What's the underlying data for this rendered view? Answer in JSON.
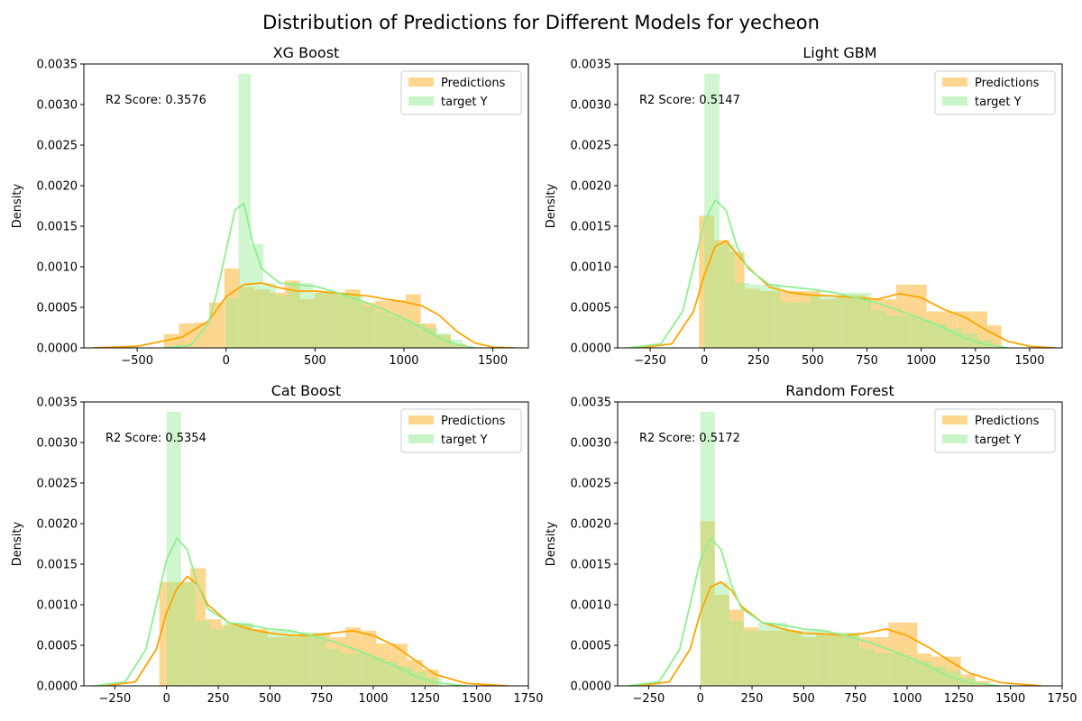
{
  "figure": {
    "title": "Distribution of Predictions for Different Models for yecheon"
  },
  "colors": {
    "predictions_fill": "#fdd78f",
    "predictions_kde": "#ffa500",
    "target_fill": "#c8f5c8",
    "target_kde": "#90ee90",
    "overlap_fill": "#d1e08f"
  },
  "chart_data": [
    {
      "type": "histogram",
      "title": "XG Boost",
      "ylabel": "Density",
      "annotation": "R2 Score: 0.3576",
      "xlim": [
        -800,
        1700
      ],
      "ylim": [
        0,
        0.0035
      ],
      "xticks": [
        -500,
        0,
        500,
        1000,
        1500
      ],
      "yticks": [
        0,
        0.0005,
        0.001,
        0.0015,
        0.002,
        0.0025,
        0.003,
        0.0035
      ],
      "legend": {
        "placement": "upper-right",
        "entries": [
          "Predictions",
          "target Y"
        ]
      },
      "series": [
        {
          "name": "Predictions",
          "bin_edges": [
            -350,
            -265,
            -180,
            -95,
            -10,
            75,
            160,
            245,
            330,
            415,
            500,
            585,
            670,
            755,
            840,
            925,
            1010,
            1095,
            1180,
            1265,
            1350
          ],
          "density": [
            0.00017,
            0.0003,
            0.00031,
            0.00056,
            0.00098,
            0.00075,
            0.00072,
            0.00068,
            0.00083,
            0.0006,
            0.00068,
            0.00068,
            0.00072,
            0.00056,
            0.00058,
            0.00058,
            0.00066,
            0.0003,
            0.00016,
            5e-05
          ],
          "kde": {
            "x": [
              -750,
              -500,
              -250,
              -100,
              0,
              100,
              200,
              300,
              400,
              500,
              600,
              700,
              800,
              900,
              1000,
              1100,
              1200,
              1300,
              1400,
              1500,
              1620
            ],
            "y": [
              0,
              2e-05,
              0.00013,
              0.00033,
              0.00063,
              0.00078,
              0.0008,
              0.00074,
              0.0007,
              0.0007,
              0.00068,
              0.00066,
              0.00064,
              0.0006,
              0.00057,
              0.00052,
              0.0004,
              0.0002,
              6e-05,
              1e-05,
              0
            ]
          }
        },
        {
          "name": "target Y",
          "bin_edges": [
            0,
            70,
            140,
            210,
            280,
            350,
            420,
            490,
            560,
            630,
            700,
            770,
            840,
            910,
            980,
            1050,
            1120,
            1190,
            1260,
            1330
          ],
          "density": [
            0.00062,
            0.00338,
            0.00128,
            0.0008,
            0.00065,
            0.0008,
            0.0008,
            0.00068,
            0.00068,
            0.00068,
            0.00065,
            0.00052,
            0.00045,
            0.0004,
            0.00035,
            0.0003,
            0.00025,
            0.00018,
            0.0001
          ],
          "kde": {
            "x": [
              -350,
              -200,
              -100,
              -50,
              0,
              50,
              100,
              150,
              200,
              300,
              400,
              500,
              600,
              700,
              800,
              900,
              1000,
              1100,
              1200,
              1300,
              1400
            ],
            "y": [
              0,
              3e-05,
              0.0003,
              0.0007,
              0.0012,
              0.0017,
              0.00178,
              0.0013,
              0.00098,
              0.0008,
              0.00078,
              0.00076,
              0.0007,
              0.00062,
              0.00055,
              0.00046,
              0.00036,
              0.00025,
              0.00012,
              4e-05,
              0
            ]
          }
        }
      ]
    },
    {
      "type": "histogram",
      "title": "Light GBM",
      "ylabel": "Density",
      "annotation": "R2 Score: 0.5147",
      "xlim": [
        -400,
        1650
      ],
      "ylim": [
        0,
        0.0035
      ],
      "xticks": [
        -250,
        0,
        250,
        500,
        750,
        1000,
        1250,
        1500
      ],
      "yticks": [
        0,
        0.0005,
        0.001,
        0.0015,
        0.002,
        0.0025,
        0.003,
        0.0035
      ],
      "legend": {
        "placement": "upper-right",
        "entries": [
          "Predictions",
          "target Y"
        ]
      },
      "series": [
        {
          "name": "Predictions",
          "bin_edges": [
            -25,
            45,
            115,
            185,
            255,
            325,
            395,
            465,
            535,
            605,
            675,
            745,
            815,
            885,
            955,
            1025,
            1095,
            1165,
            1235,
            1305,
            1370
          ],
          "density": [
            0.00163,
            0.00133,
            0.00118,
            0.00073,
            0.0007,
            0.0007,
            0.0007,
            0.0007,
            0.0006,
            0.00065,
            0.00065,
            0.0006,
            0.0006,
            0.00078,
            0.00078,
            0.00045,
            0.00045,
            0.00045,
            0.00045,
            0.00028
          ],
          "kde": {
            "x": [
              -300,
              -150,
              -50,
              0,
              50,
              100,
              200,
              300,
              400,
              500,
              600,
              700,
              800,
              900,
              1000,
              1100,
              1200,
              1300,
              1400,
              1500,
              1620
            ],
            "y": [
              0,
              5e-05,
              0.00045,
              0.0009,
              0.00125,
              0.00132,
              0.001,
              0.00075,
              0.00068,
              0.00065,
              0.00064,
              0.00062,
              0.0006,
              0.00067,
              0.00062,
              0.00048,
              0.00038,
              0.00022,
              8e-05,
              2e-05,
              0
            ]
          }
        },
        {
          "name": "target Y",
          "bin_edges": [
            0,
            70,
            140,
            210,
            280,
            350,
            420,
            490,
            560,
            630,
            700,
            770,
            840,
            910,
            980,
            1050,
            1120,
            1190,
            1260,
            1330
          ],
          "density": [
            0.00338,
            0.00128,
            0.0008,
            0.00078,
            0.00078,
            0.00056,
            0.00056,
            0.00065,
            0.00065,
            0.00068,
            0.00068,
            0.00046,
            0.0004,
            0.0004,
            0.00035,
            0.0003,
            0.00024,
            0.00018,
            0.0001
          ],
          "kde": {
            "x": [
              -350,
              -200,
              -100,
              -50,
              0,
              50,
              100,
              150,
              200,
              300,
              400,
              500,
              600,
              700,
              800,
              900,
              1000,
              1100,
              1200,
              1300,
              1400
            ],
            "y": [
              0,
              5e-05,
              0.00045,
              0.001,
              0.00155,
              0.00182,
              0.0017,
              0.00125,
              0.00098,
              0.00078,
              0.00075,
              0.00072,
              0.00068,
              0.00062,
              0.00055,
              0.00046,
              0.00036,
              0.00025,
              0.00012,
              4e-05,
              0
            ]
          }
        }
      ]
    },
    {
      "type": "histogram",
      "title": "Cat Boost",
      "ylabel": "Density",
      "annotation": "R2 Score: 0.5354",
      "xlim": [
        -400,
        1750
      ],
      "ylim": [
        0,
        0.0035
      ],
      "xticks": [
        -250,
        0,
        250,
        500,
        750,
        1000,
        1250,
        1500,
        1750
      ],
      "yticks": [
        0,
        0.0005,
        0.001,
        0.0015,
        0.002,
        0.0025,
        0.003,
        0.0035
      ],
      "legend": {
        "placement": "upper-right",
        "entries": [
          "Predictions",
          "target Y"
        ]
      },
      "series": [
        {
          "name": "Predictions",
          "bin_edges": [
            -35,
            40,
            115,
            190,
            265,
            340,
            415,
            490,
            565,
            640,
            715,
            790,
            865,
            940,
            1015,
            1090,
            1165,
            1240,
            1315
          ],
          "density": [
            0.00128,
            0.00128,
            0.00145,
            0.00082,
            0.00075,
            0.00075,
            0.0007,
            0.0006,
            0.0006,
            0.00065,
            0.00065,
            0.0006,
            0.00072,
            0.00068,
            0.00052,
            0.00052,
            0.00032,
            0.0002
          ],
          "kde": {
            "x": [
              -300,
              -150,
              -50,
              0,
              50,
              100,
              150,
              200,
              300,
              400,
              500,
              600,
              700,
              800,
              900,
              1000,
              1100,
              1200,
              1300,
              1450,
              1650
            ],
            "y": [
              0,
              5e-05,
              0.00045,
              0.0009,
              0.0012,
              0.00135,
              0.00125,
              0.001,
              0.00078,
              0.0007,
              0.00065,
              0.00062,
              0.00062,
              0.00065,
              0.00068,
              0.00062,
              0.0005,
              0.00032,
              0.00014,
              3e-05,
              0
            ]
          }
        },
        {
          "name": "target Y",
          "bin_edges": [
            0,
            70,
            140,
            210,
            280,
            350,
            420,
            490,
            560,
            630,
            700,
            770,
            840,
            910,
            980,
            1050,
            1120,
            1190,
            1260,
            1330
          ],
          "density": [
            0.00338,
            0.00128,
            0.0008,
            0.0007,
            0.00078,
            0.00078,
            0.00068,
            0.00068,
            0.00068,
            0.00066,
            0.00066,
            0.00046,
            0.0004,
            0.0004,
            0.00035,
            0.0003,
            0.00024,
            0.00018,
            0.0001
          ],
          "kde": {
            "x": [
              -350,
              -200,
              -100,
              -50,
              0,
              50,
              100,
              150,
              200,
              300,
              400,
              500,
              600,
              700,
              800,
              900,
              1000,
              1100,
              1200,
              1300,
              1450
            ],
            "y": [
              0,
              5e-05,
              0.00045,
              0.001,
              0.00155,
              0.00182,
              0.00168,
              0.00125,
              0.00095,
              0.00078,
              0.00075,
              0.0007,
              0.00068,
              0.00062,
              0.00055,
              0.00046,
              0.00036,
              0.00025,
              0.00012,
              4e-05,
              0
            ]
          }
        }
      ]
    },
    {
      "type": "histogram",
      "title": "Random Forest",
      "ylabel": "Density",
      "annotation": "R2 Score: 0.5172",
      "xlim": [
        -400,
        1750
      ],
      "ylim": [
        0,
        0.0035
      ],
      "xticks": [
        -250,
        0,
        250,
        500,
        750,
        1000,
        1250,
        1500,
        1750
      ],
      "yticks": [
        0,
        0.0005,
        0.001,
        0.0015,
        0.002,
        0.0025,
        0.003,
        0.0035
      ],
      "legend": {
        "placement": "upper-right",
        "entries": [
          "Predictions",
          "target Y"
        ]
      },
      "series": [
        {
          "name": "Predictions",
          "bin_edges": [
            0,
            70,
            140,
            210,
            280,
            350,
            420,
            490,
            560,
            630,
            700,
            770,
            840,
            910,
            980,
            1050,
            1120,
            1190,
            1260,
            1330,
            1400
          ],
          "density": [
            0.00203,
            0.00112,
            0.00094,
            0.00072,
            0.00068,
            0.00068,
            0.00068,
            0.0006,
            0.00065,
            0.00065,
            0.00065,
            0.0006,
            0.0006,
            0.00078,
            0.00078,
            0.0004,
            0.00036,
            0.00036,
            0.00014,
            6e-05
          ],
          "kde": {
            "x": [
              -300,
              -150,
              -50,
              0,
              50,
              100,
              150,
              200,
              300,
              400,
              500,
              600,
              700,
              800,
              900,
              1000,
              1100,
              1200,
              1300,
              1450,
              1650
            ],
            "y": [
              0,
              5e-05,
              0.00045,
              0.0009,
              0.00122,
              0.00128,
              0.00118,
              0.00098,
              0.00078,
              0.0007,
              0.00065,
              0.00064,
              0.00062,
              0.00065,
              0.0007,
              0.00062,
              0.00048,
              0.00032,
              0.00016,
              4e-05,
              0
            ]
          }
        },
        {
          "name": "target Y",
          "bin_edges": [
            0,
            70,
            140,
            210,
            280,
            350,
            420,
            490,
            560,
            630,
            700,
            770,
            840,
            910,
            980,
            1050,
            1120,
            1190,
            1260,
            1330
          ],
          "density": [
            0.00338,
            0.00128,
            0.0008,
            0.00068,
            0.00078,
            0.00078,
            0.00068,
            0.00068,
            0.00068,
            0.00066,
            0.00066,
            0.00046,
            0.0004,
            0.0004,
            0.00035,
            0.0003,
            0.00024,
            0.00018,
            0.0001
          ],
          "kde": {
            "x": [
              -350,
              -200,
              -100,
              -50,
              0,
              50,
              100,
              150,
              200,
              300,
              400,
              500,
              600,
              700,
              800,
              900,
              1000,
              1100,
              1200,
              1300,
              1450
            ],
            "y": [
              0,
              5e-05,
              0.00045,
              0.001,
              0.00155,
              0.00182,
              0.00168,
              0.00125,
              0.00095,
              0.00078,
              0.00075,
              0.0007,
              0.00068,
              0.00062,
              0.00055,
              0.00046,
              0.00036,
              0.00025,
              0.00012,
              4e-05,
              0
            ]
          }
        }
      ]
    }
  ]
}
